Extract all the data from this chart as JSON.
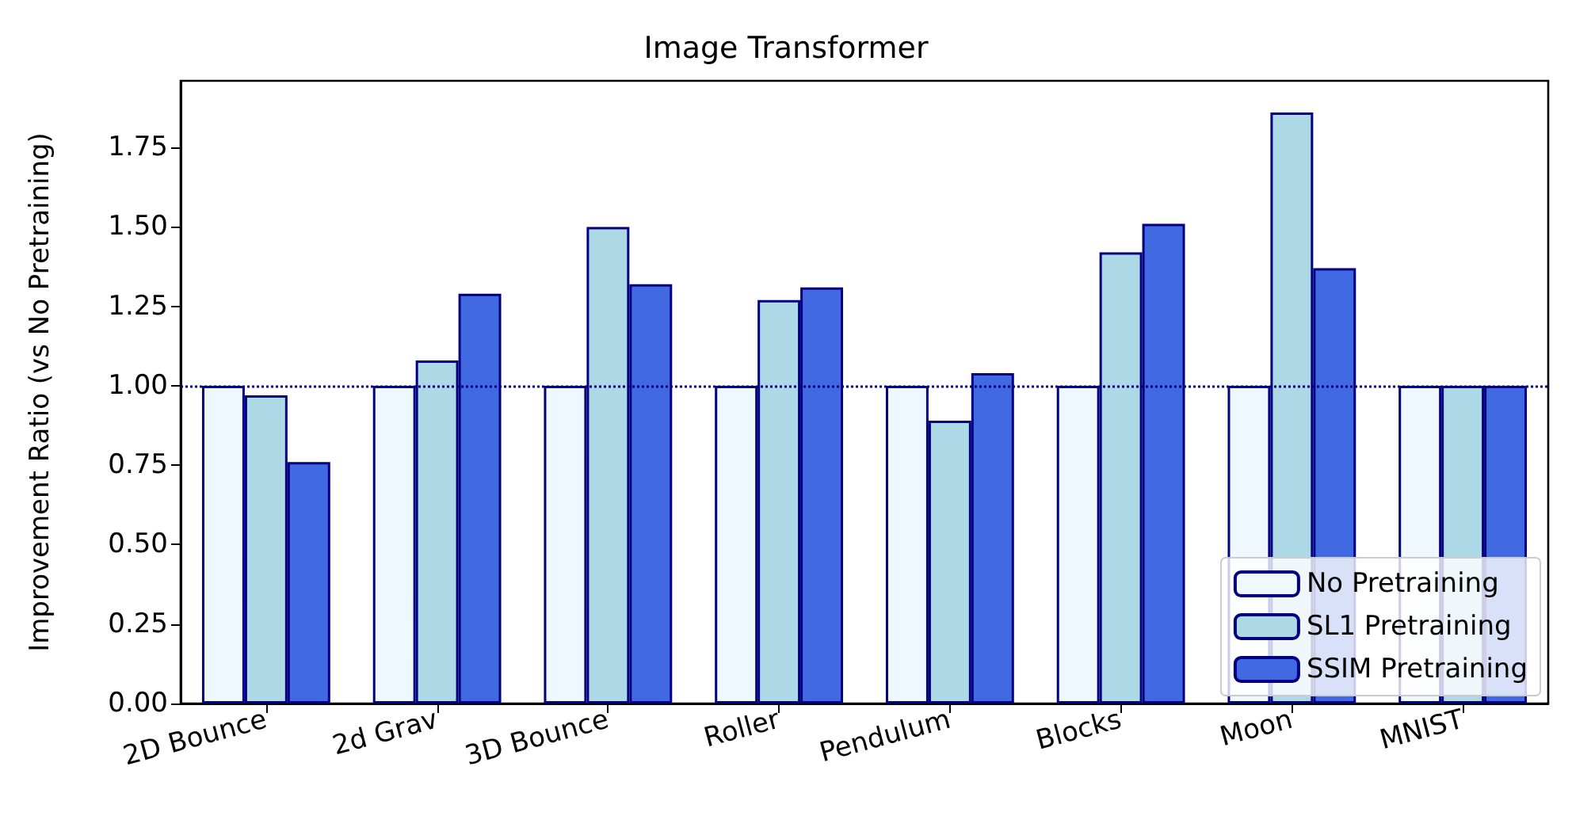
{
  "chart_data": {
    "type": "bar",
    "title": "Image Transformer",
    "ylabel": "Improvement Ratio (vs No Pretraining)",
    "categories": [
      "2D Bounce",
      "2d Grav",
      "3D Bounce",
      "Roller",
      "Pendulum",
      "Blocks",
      "Moon",
      "MNIST"
    ],
    "series": [
      {
        "name": "No Pretraining",
        "color": "#f0f8ff",
        "values": [
          1.0,
          1.0,
          1.0,
          1.0,
          1.0,
          1.0,
          1.0,
          1.0
        ]
      },
      {
        "name": "SL1 Pretraining",
        "color": "#add8e6",
        "values": [
          0.97,
          1.08,
          1.5,
          1.27,
          0.89,
          1.42,
          1.86,
          1.0
        ]
      },
      {
        "name": "SSIM Pretraining",
        "color": "#4169e1",
        "values": [
          0.76,
          1.29,
          1.32,
          1.31,
          1.04,
          1.51,
          1.37,
          1.0
        ]
      }
    ],
    "ylim": [
      0,
      1.96
    ],
    "yticks": [
      {
        "value": 0,
        "label": "0.00"
      },
      0.25,
      {
        "value": 0.5,
        "label": "0.50"
      },
      0.75,
      {
        "value": 1,
        "label": "1.00"
      },
      1.25,
      {
        "value": 1.5,
        "label": "1.50"
      },
      1.75
    ],
    "ref_lines": [
      {
        "axis": "y",
        "value": 1.0,
        "color": "#000080",
        "line_style": "dotted"
      }
    ],
    "legend": "bottom right",
    "grid": false
  }
}
